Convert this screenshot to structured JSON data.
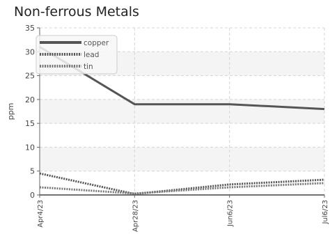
{
  "chart_data": {
    "type": "line",
    "title": "Non-ferrous Metals",
    "xlabel": "",
    "ylabel": "ppm",
    "x": [
      "Apr4/23",
      "Apr28/23",
      "Jun6/23",
      "Jul6/23"
    ],
    "ylim": [
      0,
      35
    ],
    "yticks": [
      0,
      5,
      10,
      15,
      20,
      25,
      30,
      35
    ],
    "grid": true,
    "legend_position": "top-left",
    "series": [
      {
        "name": "copper",
        "values": [
          31,
          19,
          19,
          18
        ],
        "color": "#555555",
        "style": "solid"
      },
      {
        "name": "lead",
        "values": [
          4.5,
          0.2,
          2.2,
          3.2
        ],
        "color": "#555555",
        "style": "dotted"
      },
      {
        "name": "tin",
        "values": [
          1.6,
          0.3,
          1.6,
          2.5
        ],
        "color": "#777777",
        "style": "dotted"
      }
    ]
  }
}
